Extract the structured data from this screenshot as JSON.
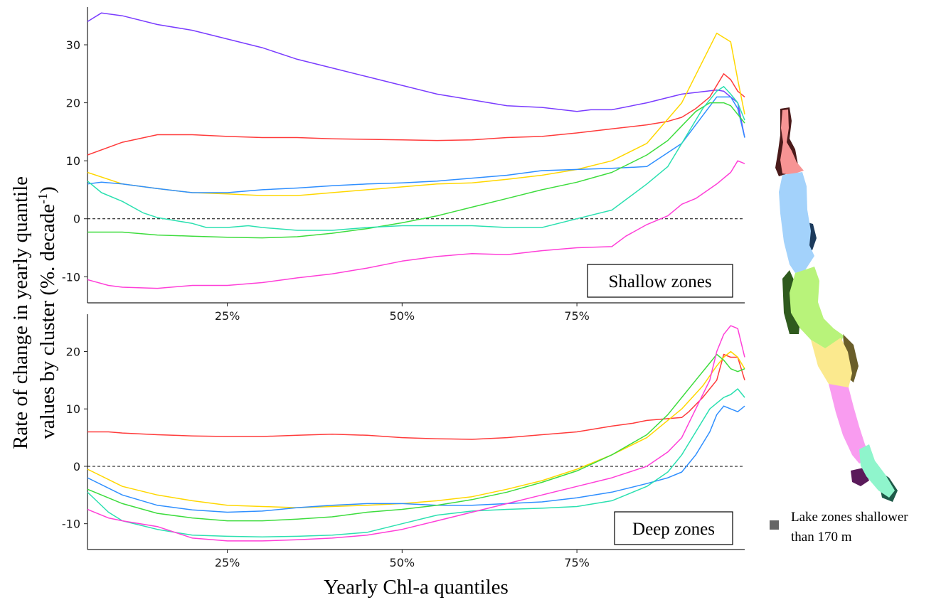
{
  "chart_data": {
    "type": "line",
    "ylabel_line1": "Rate of change in yearly quantile",
    "ylabel_line2": "values by cluster (%. decade",
    "ylabel_sup": "-1",
    "ylabel_close": ")",
    "xlabel": "Yearly Chl-a quantiles",
    "xlim": [
      5,
      99
    ],
    "xticks": [
      25,
      50,
      75
    ],
    "xticklabels": [
      "25%",
      "50%",
      "75%"
    ],
    "grid": false,
    "legend_text_lines": [
      "Lake zones shallower",
      "than 170 m"
    ],
    "legend_color": "#666666",
    "map_colors": {
      "north": "#f79494",
      "central_north": "#a3d2fb",
      "central": "#b8f37a",
      "central_south": "#fbe98e",
      "south": "#f99cf0",
      "far_south": "#8ff5cc",
      "shallow_dark": [
        "#4a1a1a",
        "#1c3a5c",
        "#2f5a1e",
        "#6a5e2a",
        "#5a1a5a",
        "#1e5a48"
      ]
    },
    "panels": [
      {
        "label": "Shallow zones",
        "ylim": [
          -14.5,
          36.5
        ],
        "yticks": [
          -10,
          0,
          10,
          20,
          30
        ],
        "yticklabels": [
          "-10",
          "0",
          "10",
          "20",
          "30"
        ],
        "series": [
          {
            "color": "#7a3cff",
            "x": [
              5,
              7,
              10,
              15,
              20,
              25,
              30,
              35,
              40,
              45,
              50,
              55,
              60,
              65,
              70,
              75,
              77,
              80,
              85,
              90,
              95,
              96,
              97,
              98,
              99
            ],
            "y": [
              34,
              35.5,
              35,
              33.5,
              32.5,
              31,
              29.5,
              27.5,
              26,
              24.5,
              23,
              21.5,
              20.5,
              19.5,
              19.2,
              18.5,
              18.8,
              18.8,
              20,
              21.5,
              22.2,
              22,
              21,
              20,
              14
            ]
          },
          {
            "color": "#ff3b3b",
            "x": [
              5,
              10,
              15,
              20,
              25,
              30,
              35,
              40,
              45,
              50,
              55,
              60,
              65,
              70,
              75,
              80,
              85,
              88,
              90,
              92,
              94,
              96,
              97,
              98,
              99
            ],
            "y": [
              11,
              13.2,
              14.5,
              14.5,
              14.2,
              14,
              14,
              13.8,
              13.7,
              13.6,
              13.5,
              13.6,
              14,
              14.2,
              14.8,
              15.5,
              16.2,
              16.8,
              17.5,
              19,
              21,
              25,
              24,
              22,
              21
            ]
          },
          {
            "color": "#ffd700",
            "x": [
              5,
              10,
              15,
              20,
              25,
              30,
              35,
              40,
              45,
              50,
              55,
              60,
              65,
              70,
              75,
              80,
              85,
              90,
              95,
              97,
              98,
              99
            ],
            "y": [
              8,
              6,
              5.2,
              4.5,
              4.3,
              4,
              4,
              4.5,
              5,
              5.5,
              6,
              6.2,
              6.8,
              7.5,
              8.5,
              10,
              13,
              20,
              32,
              30.5,
              24,
              18
            ]
          },
          {
            "color": "#2f8fff",
            "x": [
              5,
              7,
              10,
              15,
              20,
              25,
              30,
              35,
              40,
              45,
              50,
              55,
              60,
              65,
              70,
              75,
              80,
              85,
              90,
              95,
              97,
              98,
              99
            ],
            "y": [
              6,
              6.3,
              6,
              5.2,
              4.5,
              4.5,
              5,
              5.3,
              5.7,
              6,
              6.2,
              6.5,
              7,
              7.5,
              8.3,
              8.5,
              8.7,
              9,
              13,
              21,
              21,
              19,
              14
            ]
          },
          {
            "color": "#3ddc3d",
            "x": [
              5,
              10,
              15,
              20,
              25,
              30,
              35,
              40,
              45,
              50,
              55,
              60,
              65,
              70,
              75,
              80,
              85,
              88,
              90,
              92,
              94,
              96,
              97,
              98,
              99
            ],
            "y": [
              -2.3,
              -2.3,
              -2.8,
              -3,
              -3.2,
              -3.3,
              -3.1,
              -2.5,
              -1.7,
              -0.7,
              0.5,
              2,
              3.5,
              5,
              6.3,
              8,
              11,
              13.5,
              16,
              18.5,
              20,
              20,
              19.5,
              18,
              16.5
            ]
          },
          {
            "color": "#2be0b0",
            "x": [
              5,
              7,
              10,
              13,
              15,
              20,
              22,
              25,
              28,
              30,
              35,
              40,
              45,
              50,
              55,
              60,
              65,
              70,
              75,
              80,
              85,
              88,
              90,
              93,
              95,
              96,
              97,
              98,
              99
            ],
            "y": [
              6.5,
              4.5,
              3,
              1,
              0.2,
              -0.8,
              -1.5,
              -1.5,
              -1.2,
              -1.5,
              -2,
              -2,
              -1.5,
              -1.2,
              -1.2,
              -1.2,
              -1.5,
              -1.5,
              0,
              1.5,
              6,
              9,
              13,
              19,
              22,
              22.8,
              21.5,
              20,
              17
            ]
          },
          {
            "color": "#ff3fd8",
            "x": [
              5,
              8,
              10,
              15,
              20,
              25,
              30,
              35,
              40,
              45,
              50,
              55,
              60,
              65,
              70,
              75,
              80,
              82,
              85,
              88,
              90,
              92,
              95,
              97,
              98,
              99
            ],
            "y": [
              -10.5,
              -11.5,
              -11.8,
              -12,
              -11.5,
              -11.5,
              -11,
              -10.2,
              -9.5,
              -8.5,
              -7.3,
              -6.5,
              -6,
              -6.2,
              -5.5,
              -5,
              -4.8,
              -3,
              -1,
              0.5,
              2.5,
              3.5,
              6,
              8,
              10,
              9.5
            ]
          }
        ]
      },
      {
        "label": "Deep zones",
        "ylim": [
          -14.5,
          26.5
        ],
        "yticks": [
          -10,
          0,
          10,
          20
        ],
        "yticklabels": [
          "-10",
          "0",
          "10",
          "20"
        ],
        "series": [
          {
            "color": "#ff3b3b",
            "x": [
              5,
              8,
              10,
              15,
              20,
              25,
              30,
              35,
              40,
              45,
              50,
              55,
              60,
              65,
              70,
              75,
              80,
              83,
              85,
              88,
              90,
              91,
              93,
              95,
              96,
              97,
              98,
              99
            ],
            "y": [
              6,
              6,
              5.8,
              5.5,
              5.3,
              5.2,
              5.2,
              5.4,
              5.6,
              5.4,
              5,
              4.8,
              4.7,
              5,
              5.5,
              6,
              7,
              7.5,
              8,
              8.3,
              8.5,
              9.5,
              12,
              15,
              19.5,
              19,
              19,
              15
            ]
          },
          {
            "color": "#ffd700",
            "x": [
              5,
              10,
              15,
              20,
              25,
              30,
              35,
              40,
              45,
              50,
              55,
              60,
              65,
              70,
              75,
              80,
              85,
              90,
              93,
              95,
              96,
              97,
              98,
              99
            ],
            "y": [
              -0.5,
              -3.5,
              -5,
              -6,
              -6.8,
              -7,
              -7.2,
              -7,
              -6.8,
              -6.5,
              -6,
              -5.3,
              -4,
              -2.5,
              -0.5,
              2,
              5,
              10,
              14,
              17.5,
              19,
              20,
              19,
              17
            ]
          },
          {
            "color": "#2f8fff",
            "x": [
              5,
              10,
              15,
              20,
              25,
              30,
              35,
              40,
              45,
              50,
              55,
              60,
              65,
              70,
              75,
              80,
              85,
              88,
              90,
              92,
              94,
              95,
              96,
              97,
              98,
              99
            ],
            "y": [
              -2,
              -5,
              -6.8,
              -7.6,
              -8,
              -7.8,
              -7.2,
              -6.8,
              -6.5,
              -6.5,
              -6.8,
              -6.8,
              -6.5,
              -6.2,
              -5.5,
              -4.5,
              -3,
              -2,
              -1,
              2,
              6,
              9,
              10.5,
              10,
              9.5,
              10.5
            ]
          },
          {
            "color": "#3ddc3d",
            "x": [
              5,
              10,
              15,
              20,
              25,
              30,
              35,
              40,
              45,
              50,
              55,
              60,
              65,
              70,
              75,
              80,
              85,
              88,
              90,
              92,
              94,
              95,
              96,
              97,
              98,
              99
            ],
            "y": [
              -4,
              -6.5,
              -8.2,
              -9,
              -9.5,
              -9.5,
              -9.2,
              -8.8,
              -8,
              -7.5,
              -6.8,
              -5.8,
              -4.5,
              -2.8,
              -0.8,
              2,
              5.5,
              9,
              12,
              15,
              18,
              19.5,
              18.5,
              17,
              16.5,
              17
            ]
          },
          {
            "color": "#2be0b0",
            "x": [
              5,
              8,
              10,
              15,
              20,
              25,
              30,
              35,
              40,
              45,
              50,
              55,
              60,
              65,
              70,
              75,
              80,
              85,
              88,
              90,
              92,
              94,
              95,
              96,
              97,
              98,
              99
            ],
            "y": [
              -4.5,
              -8,
              -9.5,
              -11,
              -12,
              -12.2,
              -12.3,
              -12.2,
              -12,
              -11.5,
              -10,
              -8.5,
              -7.8,
              -7.5,
              -7.3,
              -7,
              -6,
              -3.5,
              -1,
              2,
              6,
              10,
              11,
              12,
              12.5,
              13.5,
              12
            ]
          },
          {
            "color": "#ff3fd8",
            "x": [
              5,
              8,
              10,
              15,
              20,
              25,
              30,
              35,
              40,
              45,
              50,
              55,
              60,
              65,
              70,
              75,
              80,
              85,
              88,
              90,
              92,
              94,
              95,
              96,
              97,
              98,
              99
            ],
            "y": [
              -7.5,
              -9,
              -9.5,
              -10.5,
              -12.5,
              -13,
              -13,
              -12.8,
              -12.5,
              -12,
              -11,
              -9.5,
              -8,
              -6.5,
              -5,
              -3.5,
              -2,
              0,
              2.5,
              5,
              10,
              15,
              20,
              23,
              24.5,
              24,
              19
            ]
          }
        ]
      }
    ]
  }
}
